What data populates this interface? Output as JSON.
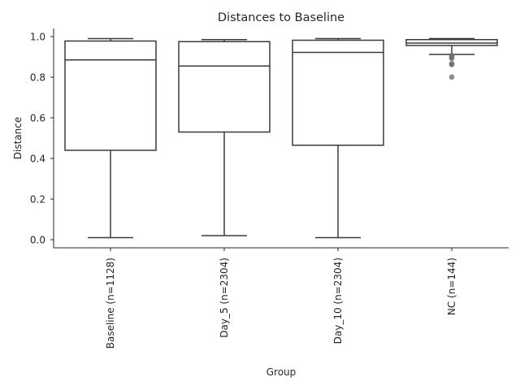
{
  "chart_data": {
    "type": "box",
    "title": "Distances to Baseline",
    "xlabel": "Group",
    "ylabel": "Distance",
    "ylim": [
      -0.04,
      1.04
    ],
    "yticks": [
      0.0,
      0.2,
      0.4,
      0.6,
      0.8,
      1.0
    ],
    "ytick_labels": [
      "0.0",
      "0.2",
      "0.4",
      "0.6",
      "0.8",
      "1.0"
    ],
    "grid": false,
    "categories": [
      "Baseline (n=1128)",
      "Day_5 (n=2304)",
      "Day_10 (n=2304)",
      "NC (n=144)"
    ],
    "boxes": [
      {
        "whislo": 0.01,
        "q1": 0.44,
        "med": 0.885,
        "q3": 0.978,
        "whishi": 0.99,
        "fliers": []
      },
      {
        "whislo": 0.02,
        "q1": 0.53,
        "med": 0.855,
        "q3": 0.975,
        "whishi": 0.985,
        "fliers": []
      },
      {
        "whislo": 0.01,
        "q1": 0.465,
        "med": 0.922,
        "q3": 0.982,
        "whishi": 0.99,
        "fliers": []
      },
      {
        "whislo": 0.912,
        "q1": 0.956,
        "med": 0.968,
        "q3": 0.985,
        "whishi": 0.99,
        "fliers": [
          0.906,
          0.898,
          0.893,
          0.867,
          0.862,
          0.801
        ]
      }
    ]
  }
}
